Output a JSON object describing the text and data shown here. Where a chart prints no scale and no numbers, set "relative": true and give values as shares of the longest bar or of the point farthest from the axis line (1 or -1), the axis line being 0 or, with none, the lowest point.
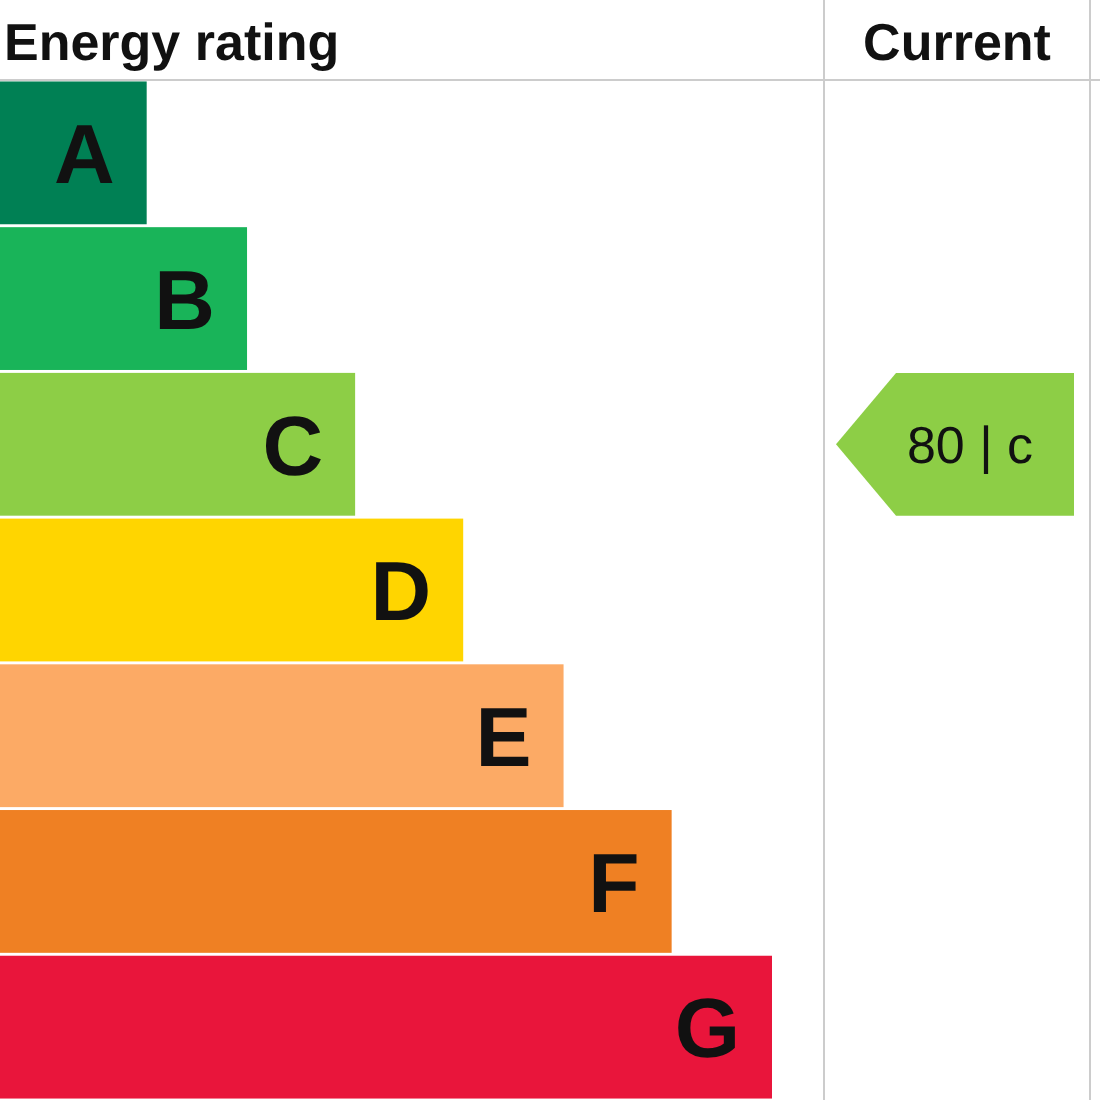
{
  "chart_data": {
    "type": "bar",
    "orientation": "horizontal",
    "relative": true,
    "title": "Energy rating",
    "categories": [
      "A",
      "B",
      "C",
      "D",
      "E",
      "F",
      "G"
    ],
    "values": [
      0.19,
      0.32,
      0.46,
      0.6,
      0.73,
      0.87,
      1
    ],
    "colors": [
      "#008054",
      "#19b459",
      "#8dce46",
      "#ffd500",
      "#fcaa65",
      "#ef8023",
      "#e9153b"
    ],
    "annotations": [
      "Current",
      "80 | c"
    ]
  }
}
